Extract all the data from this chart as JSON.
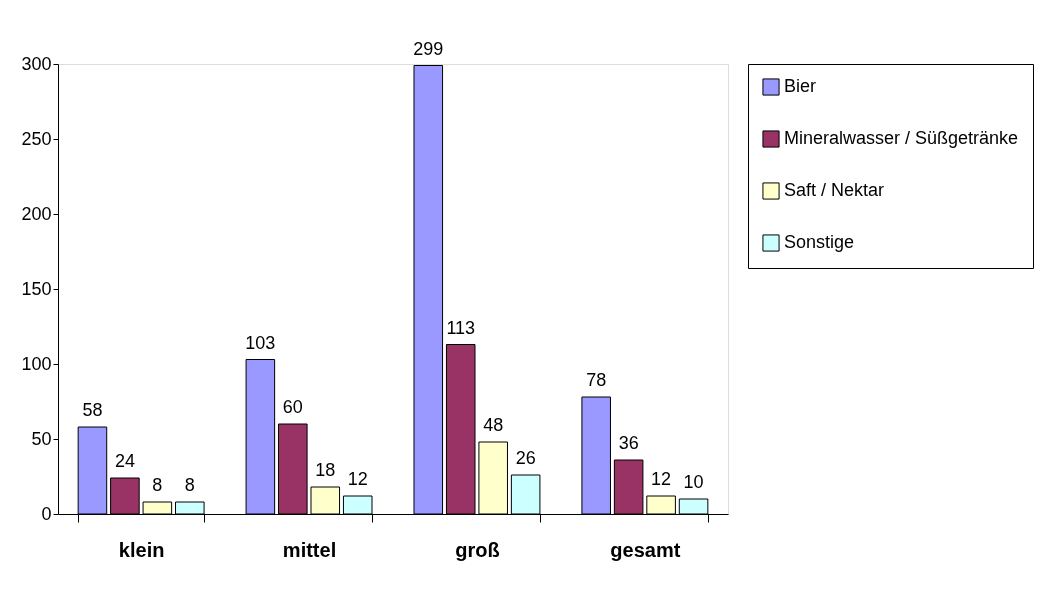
{
  "chart_data": {
    "type": "bar",
    "categories": [
      "klein",
      "mittel",
      "groß",
      "gesamt"
    ],
    "series": [
      {
        "name": "Bier",
        "color": "#9999ff",
        "values": [
          58,
          103,
          299,
          78
        ]
      },
      {
        "name": "Mineralwasser / Süßgetränke",
        "color": "#993366",
        "values": [
          24,
          60,
          113,
          36
        ]
      },
      {
        "name": "Saft / Nektar",
        "color": "#ffffcc",
        "values": [
          8,
          18,
          48,
          12
        ]
      },
      {
        "name": "Sonstige",
        "color": "#ccffff",
        "values": [
          8,
          12,
          26,
          10
        ]
      }
    ],
    "ylim": [
      0,
      300
    ],
    "yticks": [
      0,
      50,
      100,
      150,
      200,
      250,
      300
    ],
    "grid": false,
    "legend": "right",
    "data_labels": true
  }
}
